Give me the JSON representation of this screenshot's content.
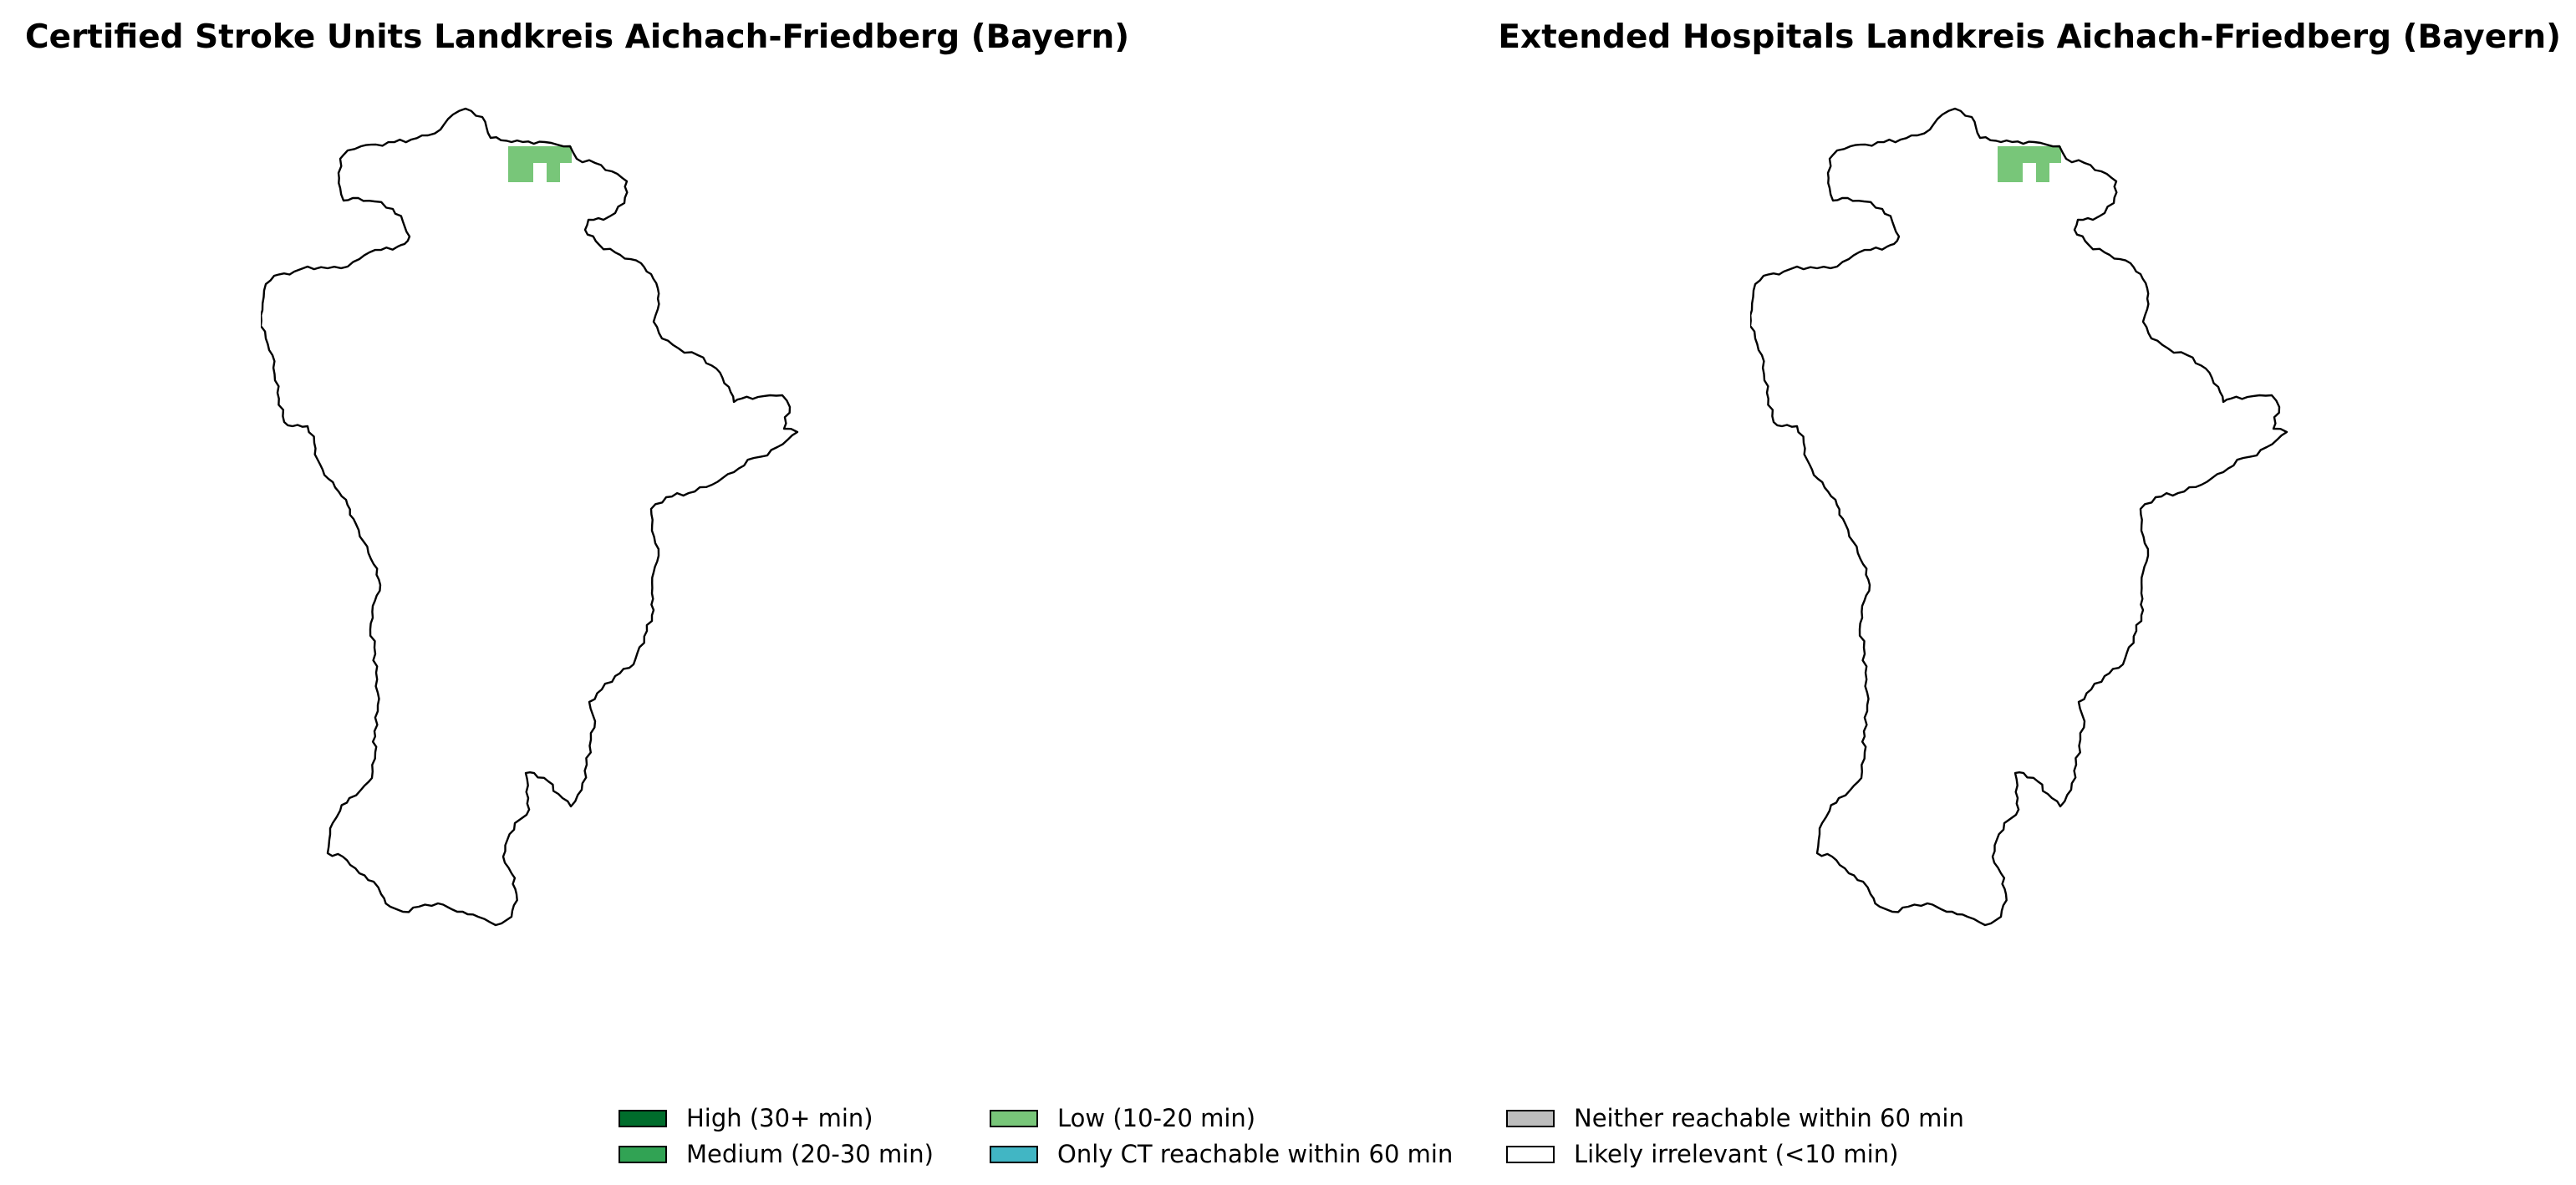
{
  "maps": [
    {
      "title": "Certified Stroke Units Landkreis Aichach-Friedberg (Bayern)",
      "highlighted_category": "Low (10-20 min)"
    },
    {
      "title": "Extended Hospitals Landkreis Aichach-Friedberg (Bayern)",
      "highlighted_category": "Low (10-20 min)"
    }
  ],
  "legend": {
    "items": [
      {
        "label": "High (30+ min)",
        "color": "#006d2c"
      },
      {
        "label": "Medium (20-30 min)",
        "color": "#31a354"
      },
      {
        "label": "Low (10-20 min)",
        "color": "#78c679"
      },
      {
        "label": "Only CT reachable within 60 min",
        "color": "#41b6c4"
      },
      {
        "label": "Neither reachable within 60 min",
        "color": "#bdbdbd"
      },
      {
        "label": "Likely irrelevant (<10 min)",
        "color": "#ffffff"
      }
    ]
  },
  "colors": {
    "outline": "#000000",
    "background": "#ffffff"
  }
}
